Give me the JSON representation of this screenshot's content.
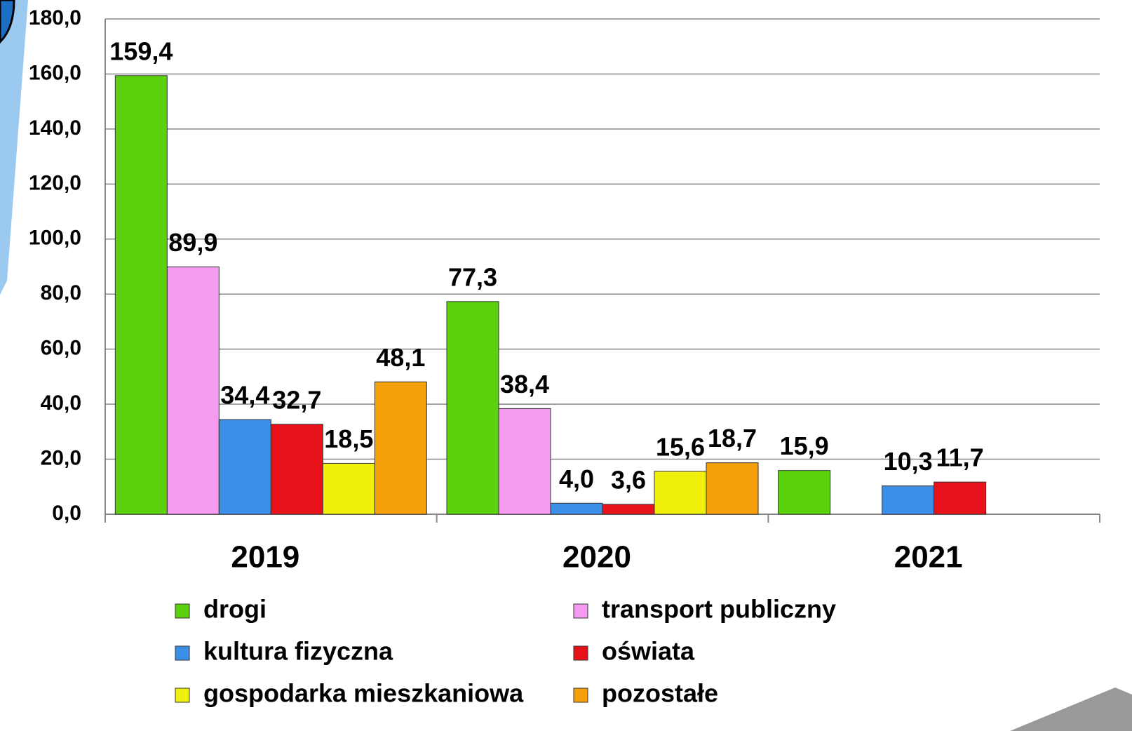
{
  "chart_data": {
    "type": "bar",
    "categories": [
      "2019",
      "2020",
      "2021"
    ],
    "series": [
      {
        "name": "drogi",
        "color": "#5cd10e",
        "values": [
          159.4,
          77.3,
          15.9
        ],
        "value_labels": [
          "159,4",
          "77,3",
          "15,9"
        ]
      },
      {
        "name": "transport publiczny",
        "color": "#f59cf0",
        "values": [
          89.9,
          38.4,
          null
        ],
        "value_labels": [
          "89,9",
          "38,4",
          null
        ]
      },
      {
        "name": "kultura fizyczna",
        "color": "#3b8fe6",
        "values": [
          34.4,
          4.0,
          10.3
        ],
        "value_labels": [
          "34,4",
          "4,0",
          "10,3"
        ]
      },
      {
        "name": "oświata",
        "color": "#e8121b",
        "values": [
          32.7,
          3.6,
          11.7
        ],
        "value_labels": [
          "32,7",
          "3,6",
          "11,7"
        ]
      },
      {
        "name": "gospodarka mieszkaniowa",
        "color": "#f0f00c",
        "values": [
          18.5,
          15.6,
          null
        ],
        "value_labels": [
          "18,5",
          "15,6",
          null
        ]
      },
      {
        "name": "pozostałe",
        "color": "#f5a10b",
        "values": [
          48.1,
          18.7,
          null
        ],
        "value_labels": [
          "48,1",
          "18,7",
          null
        ]
      }
    ],
    "ylim": [
      0,
      180
    ],
    "yticks": [
      {
        "value": 0,
        "label": "0,0"
      },
      {
        "value": 20,
        "label": "20,0"
      },
      {
        "value": 40,
        "label": "40,0"
      },
      {
        "value": 60,
        "label": "60,0"
      },
      {
        "value": 80,
        "label": "80,0"
      },
      {
        "value": 100,
        "label": "100,0"
      },
      {
        "value": 120,
        "label": "120,0"
      },
      {
        "value": 140,
        "label": "140,0"
      },
      {
        "value": 160,
        "label": "160,0"
      },
      {
        "value": 180,
        "label": "180,0"
      }
    ],
    "grid": true
  }
}
